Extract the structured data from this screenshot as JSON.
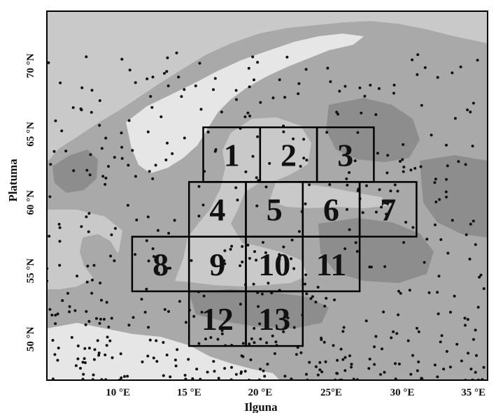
{
  "map": {
    "xlabel": "Ilguna",
    "ylabel": "Platuma",
    "xlim": [
      5,
      36
    ],
    "ylim": [
      47,
      74
    ],
    "x_ticks": [
      {
        "value": 10,
        "label": "10 °E"
      },
      {
        "value": 15,
        "label": "15 °E"
      },
      {
        "value": 20,
        "label": "20 °E"
      },
      {
        "value": 25,
        "label": "25°E"
      },
      {
        "value": 30,
        "label": "30 °E"
      },
      {
        "value": 35,
        "label": "35 °E"
      }
    ],
    "y_ticks": [
      {
        "value": 50,
        "label": "50 °N"
      },
      {
        "value": 55,
        "label": "55 °N"
      },
      {
        "value": 60,
        "label": "60 °N"
      },
      {
        "value": 65,
        "label": "65 °N"
      },
      {
        "value": 70,
        "label": "70 °N"
      }
    ],
    "colors": {
      "frame": "#000000",
      "sea": "#c9c9c9",
      "land_low": "#8d8d8d",
      "land_mid": "#a9a9a9",
      "land_high": "#e6e6e6",
      "station": "#111111"
    },
    "regions": [
      {
        "label": "1",
        "lon": [
          16,
          20
        ],
        "lat": [
          61.5,
          65.5
        ]
      },
      {
        "label": "2",
        "lon": [
          20,
          24
        ],
        "lat": [
          61.5,
          65.5
        ]
      },
      {
        "label": "3",
        "lon": [
          24,
          28
        ],
        "lat": [
          61.5,
          65.5
        ]
      },
      {
        "label": "4",
        "lon": [
          15,
          19
        ],
        "lat": [
          57.5,
          61.5
        ]
      },
      {
        "label": "5",
        "lon": [
          19,
          23
        ],
        "lat": [
          57.5,
          61.5
        ]
      },
      {
        "label": "6",
        "lon": [
          23,
          27
        ],
        "lat": [
          57.5,
          61.5
        ]
      },
      {
        "label": "7",
        "lon": [
          27,
          31
        ],
        "lat": [
          57.5,
          61.5
        ]
      },
      {
        "label": "8",
        "lon": [
          11,
          15
        ],
        "lat": [
          53.5,
          57.5
        ]
      },
      {
        "label": "9",
        "lon": [
          15,
          19
        ],
        "lat": [
          53.5,
          57.5
        ]
      },
      {
        "label": "10",
        "lon": [
          19,
          23
        ],
        "lat": [
          53.5,
          57.5
        ]
      },
      {
        "label": "11",
        "lon": [
          23,
          27
        ],
        "lat": [
          53.5,
          57.5
        ]
      },
      {
        "label": "12",
        "lon": [
          15,
          19
        ],
        "lat": [
          49.5,
          53.5
        ]
      },
      {
        "label": "13",
        "lon": [
          19,
          23
        ],
        "lat": [
          49.5,
          53.5
        ]
      }
    ]
  }
}
